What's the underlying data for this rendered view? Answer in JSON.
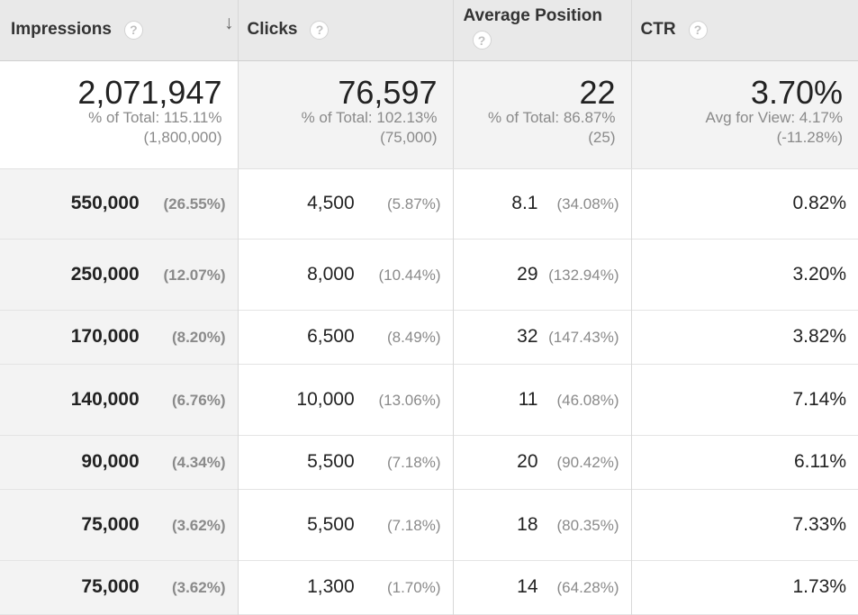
{
  "headers": {
    "impressions": "Impressions",
    "clicks": "Clicks",
    "avg_position": "Average Position",
    "ctr": "CTR",
    "help": "?",
    "sort": "↓"
  },
  "totals": {
    "impressions": {
      "value": "2,071,947",
      "line1": "% of Total: 115.11%",
      "line2": "(1,800,000)"
    },
    "clicks": {
      "value": "76,597",
      "line1": "% of Total: 102.13%",
      "line2": "(75,000)"
    },
    "avg_position": {
      "value": "22",
      "line1": "% of Total: 86.87%",
      "line2": "(25)"
    },
    "ctr": {
      "value": "3.70%",
      "line1": "Avg for View: 4.17%",
      "line2": "(-11.28%)"
    }
  },
  "rows": [
    {
      "impressions": "550,000",
      "imp_pct": "(26.55%)",
      "clicks": "4,500",
      "clk_pct": "(5.87%)",
      "pos": "8.1",
      "pos_pct": "(34.08%)",
      "ctr": "0.82%"
    },
    {
      "impressions": "250,000",
      "imp_pct": "(12.07%)",
      "clicks": "8,000",
      "clk_pct": "(10.44%)",
      "pos": "29",
      "pos_pct": "(132.94%)",
      "ctr": "3.20%"
    },
    {
      "impressions": "170,000",
      "imp_pct": "(8.20%)",
      "clicks": "6,500",
      "clk_pct": "(8.49%)",
      "pos": "32",
      "pos_pct": "(147.43%)",
      "ctr": "3.82%"
    },
    {
      "impressions": "140,000",
      "imp_pct": "(6.76%)",
      "clicks": "10,000",
      "clk_pct": "(13.06%)",
      "pos": "11",
      "pos_pct": "(46.08%)",
      "ctr": "7.14%"
    },
    {
      "impressions": "90,000",
      "imp_pct": "(4.34%)",
      "clicks": "5,500",
      "clk_pct": "(7.18%)",
      "pos": "20",
      "pos_pct": "(90.42%)",
      "ctr": "6.11%"
    },
    {
      "impressions": "75,000",
      "imp_pct": "(3.62%)",
      "clicks": "5,500",
      "clk_pct": "(7.18%)",
      "pos": "18",
      "pos_pct": "(80.35%)",
      "ctr": "7.33%"
    },
    {
      "impressions": "75,000",
      "imp_pct": "(3.62%)",
      "clicks": "1,300",
      "clk_pct": "(1.70%)",
      "pos": "14",
      "pos_pct": "(64.28%)",
      "ctr": "1.73%"
    }
  ]
}
